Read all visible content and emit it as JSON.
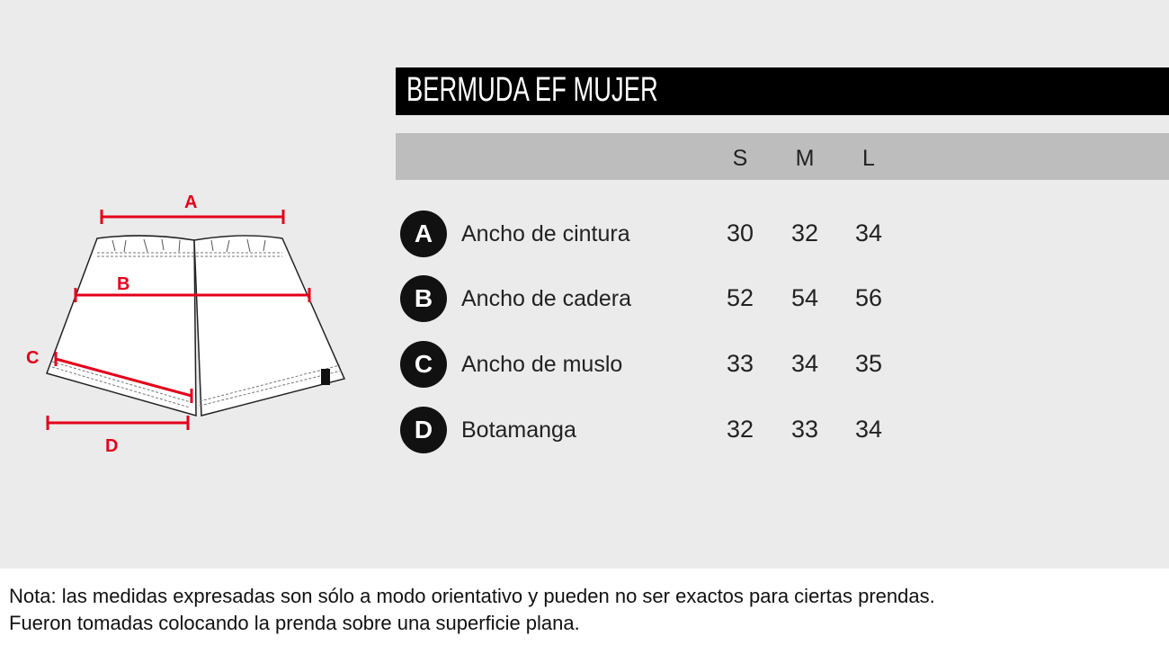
{
  "title": "BERMUDA EF MUJER",
  "sizes": [
    "S",
    "M",
    "L"
  ],
  "rows": [
    {
      "letter": "A",
      "label": "Ancho de cintura",
      "values": [
        "30",
        "32",
        "34"
      ]
    },
    {
      "letter": "B",
      "label": "Ancho de cadera",
      "values": [
        "52",
        "54",
        "56"
      ]
    },
    {
      "letter": "C",
      "label": "Ancho de muslo",
      "values": [
        "33",
        "34",
        "35"
      ]
    },
    {
      "letter": "D",
      "label": "Botamanga",
      "values": [
        "32",
        "33",
        "34"
      ]
    }
  ],
  "diagram": {
    "labels": [
      "A",
      "B",
      "C",
      "D"
    ],
    "measure_color": "#e3001b"
  },
  "note": [
    "Nota: las medidas expresadas son sólo a modo orientativo y pueden no ser exactos para ciertas prendas.",
    "Fueron tomadas colocando la prenda sobre una superficie plana."
  ]
}
